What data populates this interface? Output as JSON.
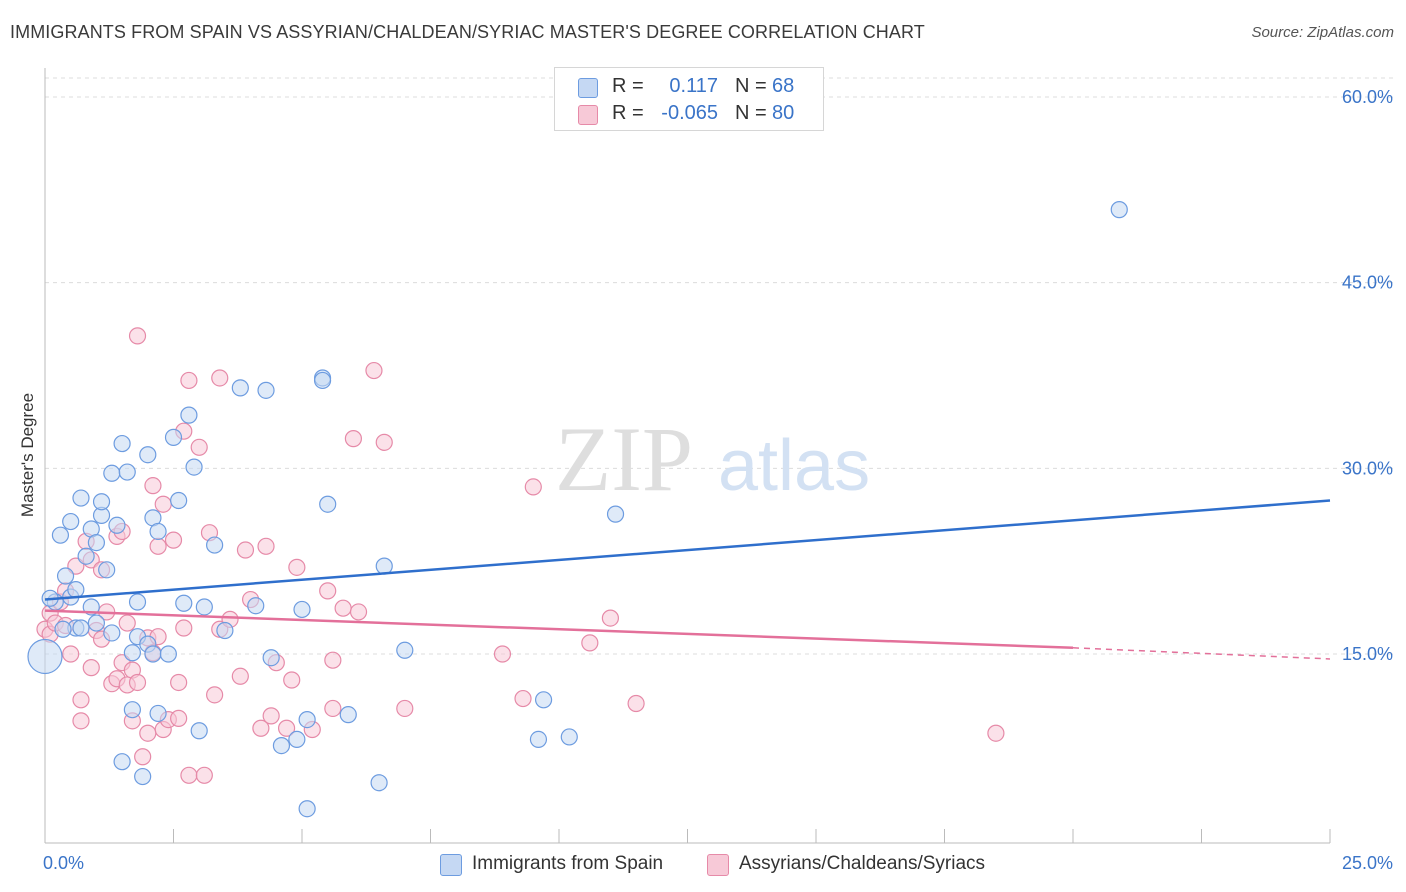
{
  "header": {
    "title": "IMMIGRANTS FROM SPAIN VS ASSYRIAN/CHALDEAN/SYRIAC MASTER'S DEGREE CORRELATION CHART",
    "source": "Source: ZipAtlas.com"
  },
  "watermark": {
    "zip": "ZIP",
    "atlas": "atlas"
  },
  "colors": {
    "blue_fill": "#c5d8f3",
    "blue_stroke": "#6d9ce0",
    "blue_line": "#2f6fcc",
    "pink_fill": "#f7c9d7",
    "pink_stroke": "#e68aa8",
    "pink_line": "#e3709a",
    "axis_text": "#3a74c8"
  },
  "legend": {
    "rows": [
      {
        "r_label": "R =",
        "r_value": "0.117",
        "n_label": "N =",
        "n_value": "68",
        "color": "#c5d8f3",
        "border": "#6d9ce0"
      },
      {
        "r_label": "R =",
        "r_value": "-0.065",
        "n_label": "N =",
        "n_value": "80",
        "color": "#f7c9d7",
        "border": "#e68aa8"
      }
    ]
  },
  "bottom_legend": [
    {
      "label": "Immigrants from Spain",
      "color": "#c5d8f3",
      "border": "#6d9ce0"
    },
    {
      "label": "Assyrians/Chaldeans/Syriacs",
      "color": "#f7c9d7",
      "border": "#e68aa8"
    }
  ],
  "chart_data": {
    "type": "scatter",
    "title": "IMMIGRANTS FROM SPAIN VS ASSYRIAN/CHALDEAN/SYRIAC MASTER'S DEGREE CORRELATION CHART",
    "xlabel": "",
    "ylabel": "Master's Degree",
    "xlim": [
      0,
      25
    ],
    "ylim": [
      0,
      64
    ],
    "x_tick_labels": [
      "0.0%",
      "25.0%"
    ],
    "y_ticks": [
      15,
      30,
      45,
      60
    ],
    "y_tick_labels": [
      "15.0%",
      "30.0%",
      "45.0%",
      "60.0%"
    ],
    "grid": "horizontal dashed",
    "series": [
      {
        "name": "Immigrants from Spain",
        "color": "#6d9ce0",
        "trend": {
          "x": [
            0,
            25
          ],
          "y": [
            19.4,
            27.4
          ]
        },
        "points": [
          [
            0.0,
            14.8
          ],
          [
            0.2,
            19.2
          ],
          [
            0.3,
            24.6
          ],
          [
            0.4,
            21.3
          ],
          [
            0.5,
            25.7
          ],
          [
            0.5,
            19.6
          ],
          [
            0.6,
            17.1
          ],
          [
            0.6,
            20.2
          ],
          [
            0.7,
            27.6
          ],
          [
            0.7,
            17.1
          ],
          [
            0.8,
            22.9
          ],
          [
            0.9,
            25.1
          ],
          [
            0.9,
            18.8
          ],
          [
            1.0,
            17.5
          ],
          [
            1.0,
            24.0
          ],
          [
            1.1,
            26.2
          ],
          [
            1.1,
            27.3
          ],
          [
            1.2,
            21.8
          ],
          [
            1.3,
            29.6
          ],
          [
            1.3,
            16.7
          ],
          [
            1.4,
            25.4
          ],
          [
            1.5,
            32.0
          ],
          [
            1.5,
            6.3
          ],
          [
            1.6,
            29.7
          ],
          [
            1.7,
            15.1
          ],
          [
            1.7,
            10.5
          ],
          [
            1.8,
            19.2
          ],
          [
            1.8,
            16.4
          ],
          [
            1.9,
            5.1
          ],
          [
            2.0,
            31.1
          ],
          [
            2.0,
            15.8
          ],
          [
            2.1,
            15.0
          ],
          [
            2.1,
            26.0
          ],
          [
            2.2,
            10.2
          ],
          [
            2.2,
            24.9
          ],
          [
            2.4,
            15.0
          ],
          [
            2.5,
            32.5
          ],
          [
            2.6,
            27.4
          ],
          [
            2.7,
            19.1
          ],
          [
            2.8,
            34.3
          ],
          [
            2.9,
            30.1
          ],
          [
            3.0,
            8.8
          ],
          [
            3.1,
            18.8
          ],
          [
            3.3,
            23.8
          ],
          [
            3.5,
            16.9
          ],
          [
            3.8,
            36.5
          ],
          [
            4.1,
            18.9
          ],
          [
            4.3,
            36.3
          ],
          [
            4.4,
            14.7
          ],
          [
            4.6,
            7.6
          ],
          [
            4.9,
            8.1
          ],
          [
            5.0,
            18.6
          ],
          [
            5.1,
            9.7
          ],
          [
            5.1,
            2.5
          ],
          [
            5.4,
            37.3
          ],
          [
            5.4,
            37.1
          ],
          [
            5.5,
            27.1
          ],
          [
            5.9,
            10.1
          ],
          [
            6.5,
            4.6
          ],
          [
            6.6,
            22.1
          ],
          [
            7.0,
            15.3
          ],
          [
            9.6,
            8.1
          ],
          [
            9.7,
            11.3
          ],
          [
            10.2,
            8.3
          ],
          [
            11.1,
            26.3
          ],
          [
            20.9,
            50.9
          ],
          [
            0.1,
            19.5
          ],
          [
            0.35,
            17.0
          ]
        ]
      },
      {
        "name": "Assyrians/Chaldeans/Syriacs",
        "color": "#e68aa8",
        "trend": {
          "x": [
            0,
            20
          ],
          "y": [
            18.5,
            15.5
          ]
        },
        "trend_dashed": {
          "x": [
            20,
            25
          ],
          "y": [
            15.5,
            14.6
          ]
        },
        "points": [
          [
            0.0,
            17.0
          ],
          [
            0.1,
            18.3
          ],
          [
            0.1,
            16.6
          ],
          [
            0.2,
            17.5
          ],
          [
            0.3,
            19.2
          ],
          [
            0.4,
            20.1
          ],
          [
            0.4,
            17.3
          ],
          [
            0.5,
            15.0
          ],
          [
            0.6,
            22.1
          ],
          [
            0.7,
            11.3
          ],
          [
            0.7,
            9.6
          ],
          [
            0.8,
            24.1
          ],
          [
            0.9,
            22.6
          ],
          [
            0.9,
            13.9
          ],
          [
            1.0,
            16.9
          ],
          [
            1.1,
            21.8
          ],
          [
            1.1,
            16.2
          ],
          [
            1.2,
            18.4
          ],
          [
            1.3,
            12.6
          ],
          [
            1.4,
            24.5
          ],
          [
            1.4,
            13.0
          ],
          [
            1.5,
            24.9
          ],
          [
            1.5,
            14.3
          ],
          [
            1.6,
            12.5
          ],
          [
            1.6,
            17.5
          ],
          [
            1.7,
            13.7
          ],
          [
            1.7,
            9.6
          ],
          [
            1.8,
            40.7
          ],
          [
            1.8,
            12.7
          ],
          [
            1.9,
            6.7
          ],
          [
            2.0,
            16.3
          ],
          [
            2.0,
            8.6
          ],
          [
            2.1,
            28.6
          ],
          [
            2.1,
            15.1
          ],
          [
            2.2,
            23.7
          ],
          [
            2.2,
            16.4
          ],
          [
            2.3,
            27.1
          ],
          [
            2.3,
            8.9
          ],
          [
            2.4,
            9.7
          ],
          [
            2.5,
            24.2
          ],
          [
            2.6,
            9.8
          ],
          [
            2.6,
            12.7
          ],
          [
            2.7,
            33.0
          ],
          [
            2.7,
            17.1
          ],
          [
            2.8,
            37.1
          ],
          [
            2.8,
            5.2
          ],
          [
            3.0,
            31.7
          ],
          [
            3.1,
            5.2
          ],
          [
            3.2,
            24.8
          ],
          [
            3.3,
            11.7
          ],
          [
            3.4,
            37.3
          ],
          [
            3.4,
            17.0
          ],
          [
            3.6,
            17.8
          ],
          [
            3.8,
            13.2
          ],
          [
            3.9,
            23.4
          ],
          [
            4.0,
            19.4
          ],
          [
            4.2,
            9.0
          ],
          [
            4.3,
            23.7
          ],
          [
            4.4,
            10.0
          ],
          [
            4.5,
            14.3
          ],
          [
            4.7,
            9.0
          ],
          [
            4.8,
            12.9
          ],
          [
            4.9,
            22.0
          ],
          [
            5.2,
            8.9
          ],
          [
            5.5,
            20.1
          ],
          [
            5.6,
            10.6
          ],
          [
            5.6,
            14.5
          ],
          [
            5.8,
            18.7
          ],
          [
            6.0,
            32.4
          ],
          [
            6.1,
            18.4
          ],
          [
            6.4,
            37.9
          ],
          [
            6.6,
            32.1
          ],
          [
            7.0,
            10.6
          ],
          [
            8.9,
            15.0
          ],
          [
            9.3,
            11.4
          ],
          [
            9.5,
            28.5
          ],
          [
            10.6,
            15.9
          ],
          [
            11.0,
            17.9
          ],
          [
            11.5,
            11.0
          ],
          [
            18.5,
            8.6
          ]
        ]
      }
    ]
  }
}
